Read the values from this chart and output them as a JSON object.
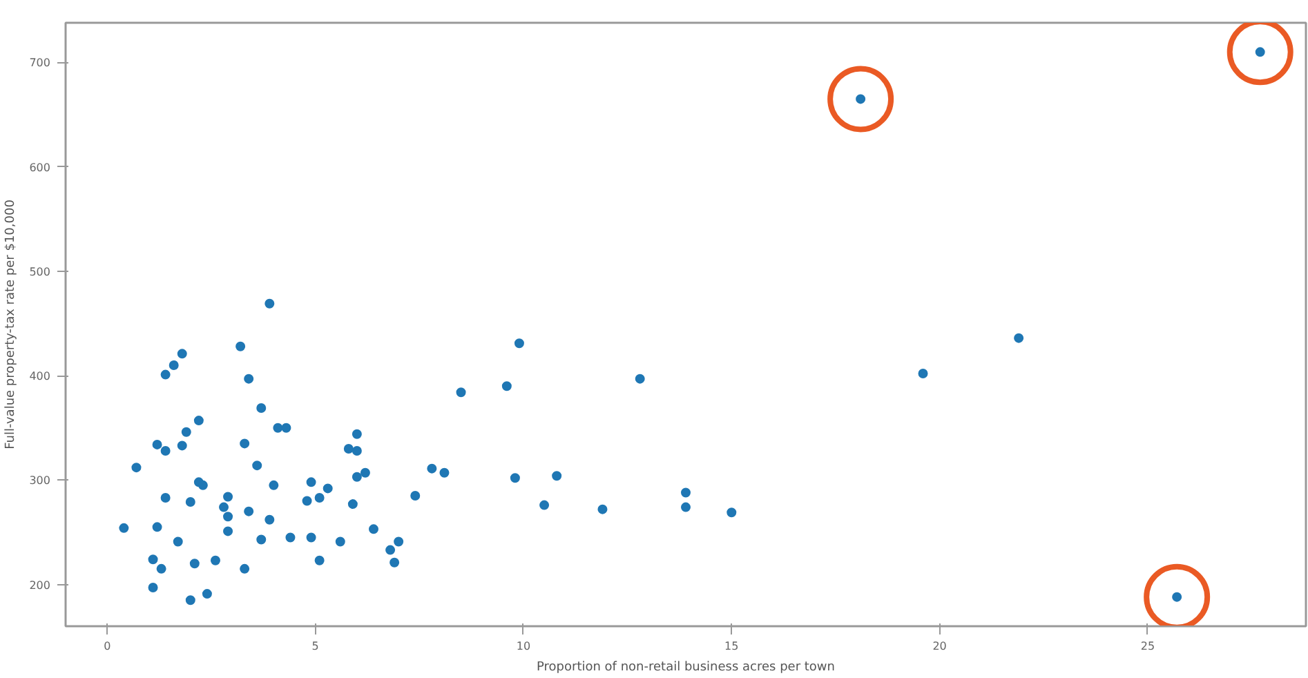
{
  "chart_data": {
    "type": "scatter",
    "xlabel": "Proportion of non-retail business acres per town",
    "ylabel": "Full-value property-tax rate per $10,000",
    "xlim": [
      -1.0,
      28.8
    ],
    "ylim": [
      160,
      738
    ],
    "xticks": [
      0,
      5,
      10,
      15,
      20,
      25
    ],
    "yticks": [
      200,
      300,
      400,
      500,
      600,
      700
    ],
    "grid": false,
    "marker": "circle",
    "series": [
      {
        "color": "#1f77b4",
        "x": [
          3.9,
          3.2,
          1.8,
          1.6,
          1.4,
          3.4,
          3.7,
          2.2,
          1.9,
          4.1,
          4.3,
          1.2,
          1.4,
          1.8,
          3.3,
          0.7,
          3.6,
          2.2,
          2.3,
          4.0,
          4.9,
          1.4,
          2.0,
          2.9,
          2.8,
          2.9,
          3.4,
          3.9,
          4.8,
          5.1,
          2.9,
          0.4,
          1.2,
          1.7,
          3.7,
          4.4,
          4.9,
          5.1,
          1.1,
          1.3,
          2.1,
          2.6,
          3.3,
          1.1,
          2.0,
          2.4,
          8.5,
          9.6,
          9.9,
          6.0,
          5.8,
          6.0,
          6.0,
          6.2,
          5.3,
          5.9,
          7.4,
          7.8,
          8.1,
          9.8,
          6.4,
          5.6,
          7.0,
          6.8,
          6.9,
          12.8,
          10.8,
          10.5,
          11.9,
          13.9,
          13.9,
          15.0,
          19.6,
          21.9,
          18.1,
          27.7,
          25.7
        ],
        "values": [
          469,
          428,
          421,
          410,
          401,
          397,
          369,
          357,
          346,
          350,
          350,
          334,
          328,
          333,
          335,
          312,
          314,
          298,
          295,
          295,
          298,
          283,
          279,
          284,
          274,
          265,
          270,
          262,
          280,
          283,
          251,
          254,
          255,
          241,
          243,
          245,
          245,
          223,
          224,
          215,
          220,
          223,
          215,
          197,
          185,
          191,
          384,
          390,
          431,
          344,
          330,
          328,
          303,
          307,
          292,
          277,
          285,
          311,
          307,
          302,
          253,
          241,
          241,
          233,
          221,
          397,
          304,
          276,
          272,
          288,
          274,
          269,
          402,
          436,
          665,
          710,
          188
        ]
      },
      {
        "color": "#ea5a24",
        "x": [
          18.1,
          27.7,
          25.7
        ],
        "values": [
          665,
          710,
          188
        ]
      }
    ]
  }
}
